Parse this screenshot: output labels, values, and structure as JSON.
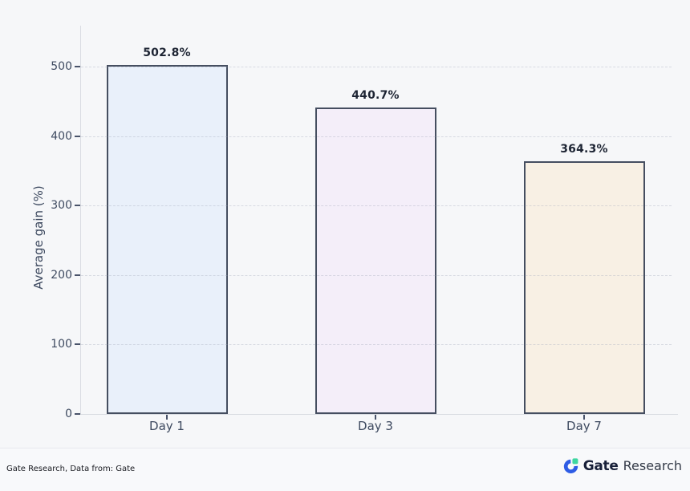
{
  "chart_data": {
    "type": "bar",
    "categories": [
      "Day 1",
      "Day 3",
      "Day 7"
    ],
    "values": [
      502.8,
      440.7,
      364.3
    ],
    "bar_labels": [
      "502.8%",
      "440.7%",
      "364.3%"
    ],
    "title": "",
    "xlabel": "",
    "ylabel": "Average gain (%)",
    "ylim": [
      0,
      560
    ],
    "yticks": [
      0,
      100,
      200,
      300,
      400,
      500
    ],
    "grid": "dashed-horizontal",
    "legend": "none",
    "bar_fill_colors": [
      "#e9f0fa",
      "#f4eef9",
      "#f8f0e4"
    ],
    "bar_border_color": "#454e60",
    "value_label_color": "#1d2433"
  },
  "footer": {
    "source_text": "Gate Research, Data from: Gate",
    "logo": {
      "brand": "Gate",
      "suffix": "Research"
    }
  },
  "colors": {
    "background": "#f6f7f9",
    "logo_blue": "#2e5ce5",
    "logo_green": "#3ed6a0"
  }
}
